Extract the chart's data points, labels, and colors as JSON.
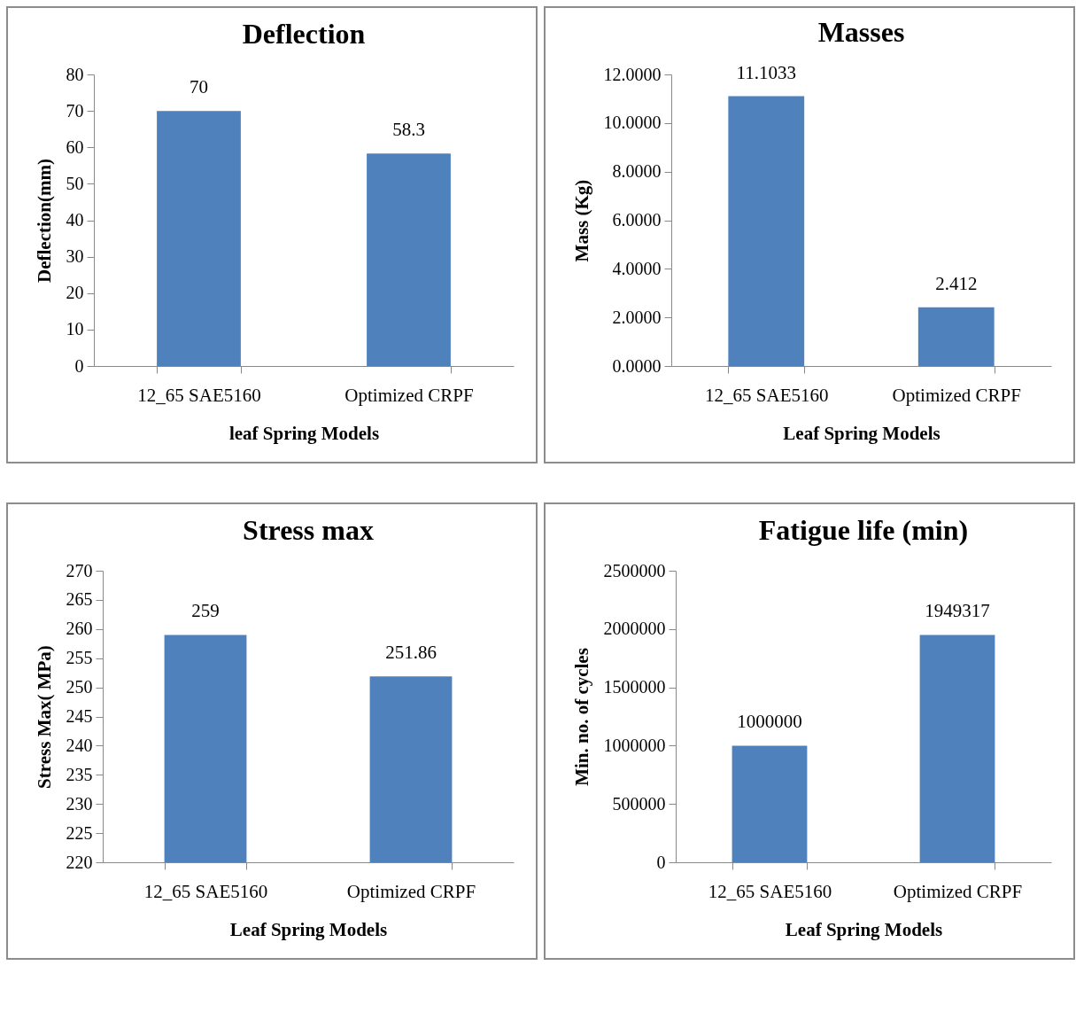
{
  "chart_data": [
    {
      "type": "bar",
      "title": "Deflection",
      "xlabel": "leaf Spring Models",
      "ylabel": "Deflection(mm)",
      "categories": [
        "12_65 SAE5160",
        "Optimized CRPF"
      ],
      "values": [
        70,
        58.3
      ],
      "color": "#4f81bd",
      "ylim": [
        0,
        80
      ],
      "yticks": [
        0,
        10,
        20,
        30,
        40,
        50,
        60,
        70,
        80
      ],
      "data_labels": true,
      "grid": false
    },
    {
      "type": "bar",
      "title": "Masses",
      "xlabel": "Leaf Spring Models",
      "ylabel": "Mass (Kg)",
      "categories": [
        "12_65 SAE5160",
        "Optimized CRPF"
      ],
      "values": [
        11.1033,
        2.412
      ],
      "color": "#4f81bd",
      "ylim": [
        0,
        12
      ],
      "yticks": [
        {
          "value": 0,
          "label": "0.0000"
        },
        {
          "value": 2,
          "label": "2.0000"
        },
        {
          "value": 4,
          "label": "4.0000"
        },
        {
          "value": 6,
          "label": "6.0000"
        },
        {
          "value": 8,
          "label": "8.0000"
        },
        {
          "value": 10,
          "label": "10.0000"
        },
        {
          "value": 12,
          "label": "12.0000"
        }
      ],
      "data_labels": true,
      "grid": false
    },
    {
      "type": "bar",
      "title": "Stress max",
      "xlabel": "Leaf Spring Models",
      "ylabel": "Stress Max( MPa)",
      "categories": [
        "12_65 SAE5160",
        "Optimized CRPF"
      ],
      "values": [
        259,
        251.86
      ],
      "color": "#4f81bd",
      "ylim": [
        220,
        270
      ],
      "yticks": [
        220,
        225,
        230,
        235,
        240,
        245,
        250,
        255,
        260,
        265,
        270
      ],
      "data_labels": true,
      "grid": false
    },
    {
      "type": "bar",
      "title": "Fatigue life (min)",
      "xlabel": "Leaf Spring Models",
      "ylabel": "Min. no. of cycles",
      "categories": [
        "12_65 SAE5160",
        "Optimized CRPF"
      ],
      "values": [
        1000000,
        1949317
      ],
      "color": "#4f81bd",
      "ylim": [
        0,
        2500000
      ],
      "yticks": [
        0,
        500000,
        1000000,
        1500000,
        2000000,
        2500000
      ],
      "data_labels": true,
      "grid": false
    }
  ]
}
